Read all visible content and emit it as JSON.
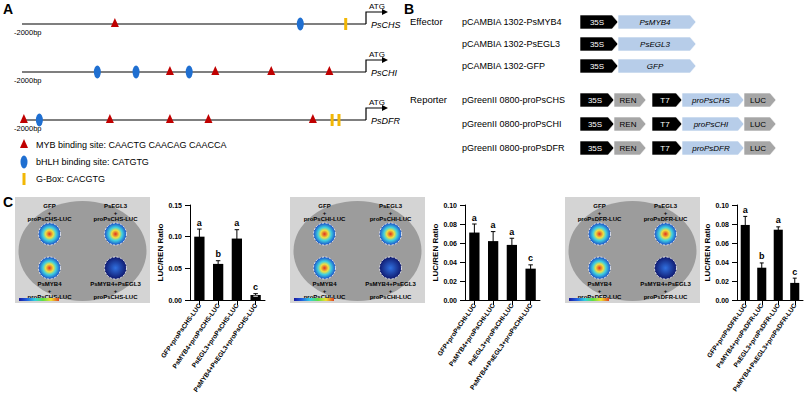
{
  "panel_labels": [
    "A",
    "B",
    "C"
  ],
  "panel_a": {
    "range_bp": [
      -2000,
      0
    ],
    "start_label": "-2000bp",
    "start_codon": "ATG",
    "genes": [
      {
        "name": "PsCHS",
        "sites": [
          {
            "kind": "myb",
            "bp": -1460
          },
          {
            "kind": "bhlh",
            "bp": -382
          },
          {
            "kind": "gbox",
            "bp": -118
          }
        ]
      },
      {
        "name": "PsCHI",
        "sites": [
          {
            "kind": "bhlh",
            "bp": -1562
          },
          {
            "kind": "bhlh",
            "bp": -1337
          },
          {
            "kind": "myb",
            "bp": -1140
          },
          {
            "kind": "bhlh",
            "bp": -1028
          },
          {
            "kind": "myb",
            "bp": -876
          },
          {
            "kind": "myb",
            "bp": -551
          },
          {
            "kind": "myb",
            "bp": -213
          }
        ]
      },
      {
        "name": "PsDFR",
        "sites": [
          {
            "kind": "myb",
            "bp": -1989
          },
          {
            "kind": "bhlh",
            "bp": -1899
          },
          {
            "kind": "myb",
            "bp": -1489
          },
          {
            "kind": "myb",
            "bp": -1140
          },
          {
            "kind": "myb",
            "bp": -916
          },
          {
            "kind": "myb",
            "bp": -309
          },
          {
            "kind": "gbox",
            "bp": -197
          },
          {
            "kind": "gbox",
            "bp": -157
          }
        ]
      }
    ],
    "legend": [
      {
        "kind": "myb",
        "text": "MYB binding site: CAACTG   CAACAG   CAACCA"
      },
      {
        "kind": "bhlh",
        "text": "bHLH binding site: CATGTG"
      },
      {
        "kind": "gbox",
        "text": "G-Box: CACGTG"
      }
    ]
  },
  "panel_b": {
    "groups": [
      {
        "label": "Effector",
        "constructs": [
          {
            "name": "pCAMBIA 1302-PsMYB4",
            "parts": [
              "35S",
              "PsMYB4"
            ]
          },
          {
            "name": "pCAMBIA 1302-PsEGL3",
            "parts": [
              "35S",
              "PsEGL3"
            ]
          },
          {
            "name": "pCAMBIA 1302-GFP",
            "parts": [
              "35S",
              "GFP"
            ]
          }
        ]
      },
      {
        "label": "Reporter",
        "constructs": [
          {
            "name": "pGreenII 0800-proPsCHS",
            "parts": [
              "35S",
              "REN",
              "T7",
              "proPsCHS",
              "LUC"
            ]
          },
          {
            "name": "pGreenII 0800-proPsCHI",
            "parts": [
              "35S",
              "REN",
              "T7",
              "proPsCHI",
              "LUC"
            ]
          },
          {
            "name": "pGreenII 0800-proPsDFR",
            "parts": [
              "35S",
              "REN",
              "T7",
              "proPsDFR",
              "LUC"
            ]
          }
        ]
      }
    ]
  },
  "leaf_images": [
    {
      "spots": [
        [
          "GFP",
          "+",
          "proPsCHS-LUC"
        ],
        [
          "PsEGL3",
          "+",
          "proPsCHS-LUC"
        ],
        [
          "PsMYB4",
          "+",
          "proPsCHS-LUC"
        ],
        [
          "PsMYB4+PsEGL3",
          "+",
          "proPsCHS-LUC"
        ]
      ]
    },
    {
      "spots": [
        [
          "GFP",
          "+",
          "proPsCHI-LUC"
        ],
        [
          "PsEGL3",
          "+",
          "proPsCHI-LUC"
        ],
        [
          "PsMYB4",
          "+",
          "proPsCHI-LUC"
        ],
        [
          "PsMYB4+PsEGL3",
          "+",
          "proPsCHI-LUC"
        ]
      ]
    },
    {
      "spots": [
        [
          "GFP",
          "+",
          "proPsDFR-LUC"
        ],
        [
          "PsEGL3",
          "+",
          "proPsDFR-LUC"
        ],
        [
          "PsMYB4",
          "+",
          "proPsDFR-LUC"
        ],
        [
          "PsMYB4+PsEGL3",
          "+",
          "proPsDFR-LUC"
        ]
      ]
    }
  ],
  "chart_data": [
    {
      "type": "bar",
      "ylabel": "LUC/REN Ratio",
      "categories": [
        "GFP+proPsCHS-LUC",
        "PsMYB4+proPsCHS-LUC",
        "PsEGL3+proPsCHS-LUC",
        "PsMYB4+PsEGL3+proPsCHS-LUC"
      ],
      "values": [
        0.1,
        0.057,
        0.097,
        0.008
      ],
      "errors": [
        0.012,
        0.005,
        0.014,
        0.002
      ],
      "annotations": [
        "a",
        "b",
        "a",
        "c"
      ],
      "color": "#000000",
      "ylim": [
        0,
        0.15
      ],
      "yticks": [
        {
          "value": 0,
          "label": "0.00"
        },
        {
          "value": 0.05,
          "label": "0.05"
        },
        {
          "value": 0.1,
          "label": "0.10"
        },
        {
          "value": 0.15,
          "label": "0.15"
        }
      ],
      "grid": false
    },
    {
      "type": "bar",
      "ylabel": "LUC/REN Ratio",
      "categories": [
        "GFP+proPsCHI-LUC",
        "PsMYB4+proPsCHI-LUC",
        "PsEGL3+proPsCHI-LUC",
        "PsMYB4+PsEGL3+proPsCHI-LUC"
      ],
      "values": [
        0.071,
        0.062,
        0.058,
        0.033
      ],
      "errors": [
        0.009,
        0.01,
        0.007,
        0.004
      ],
      "annotations": [
        "a",
        "a",
        "a",
        "c"
      ],
      "color": "#000000",
      "ylim": [
        0,
        0.1
      ],
      "yticks": [
        {
          "value": 0,
          "label": "0.00"
        },
        {
          "value": 0.02,
          "label": "0.02"
        },
        {
          "value": 0.04,
          "label": "0.04"
        },
        {
          "value": 0.06,
          "label": "0.06"
        },
        {
          "value": 0.08,
          "label": "0.08"
        },
        {
          "value": 0.1,
          "label": "0.10"
        }
      ],
      "grid": false
    },
    {
      "type": "bar",
      "ylabel": "LUC/REN Ratio",
      "categories": [
        "GFP+proPsDFR-LUC",
        "PsMYB4+proPsDFR-LUC",
        "PsEGL3+proPsDFR-LUC",
        "PsMYB4+PsEGL3+proPsDFR-LUC"
      ],
      "values": [
        0.079,
        0.034,
        0.074,
        0.018
      ],
      "errors": [
        0.009,
        0.005,
        0.003,
        0.005
      ],
      "annotations": [
        "a",
        "b",
        "a",
        "c"
      ],
      "color": "#000000",
      "ylim": [
        0,
        0.1
      ],
      "yticks": [
        {
          "value": 0,
          "label": "0.00"
        },
        {
          "value": 0.02,
          "label": "0.02"
        },
        {
          "value": 0.04,
          "label": "0.04"
        },
        {
          "value": 0.06,
          "label": "0.06"
        },
        {
          "value": 0.08,
          "label": "0.08"
        },
        {
          "value": 0.1,
          "label": "0.10"
        }
      ],
      "grid": false
    }
  ]
}
